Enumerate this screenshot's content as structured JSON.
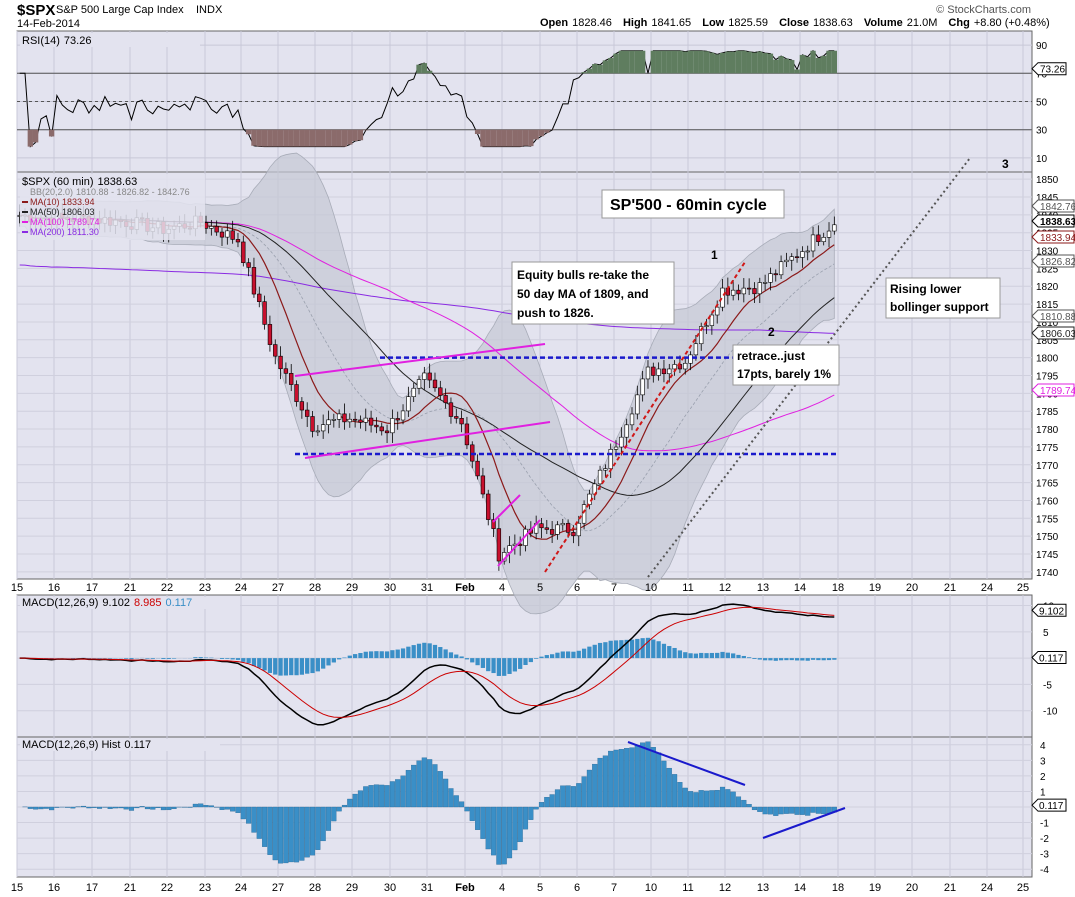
{
  "header": {
    "ticker": "$SPX",
    "name": "S&P 500 Large Cap Index",
    "exchange": "INDX",
    "date": "14-Feb-2014",
    "brand": "© StockCharts.com",
    "open_label": "Open",
    "open": "1828.46",
    "high_label": "High",
    "high": "1841.65",
    "low_label": "Low",
    "low": "1825.59",
    "close_label": "Close",
    "close": "1838.63",
    "volume_label": "Volume",
    "volume": "21.0M",
    "chg_label": "Chg",
    "chg": "+8.80 (+0.48%)"
  },
  "x_axis": {
    "labels": [
      "15",
      "16",
      "17",
      "21",
      "22",
      "23",
      "24",
      "27",
      "28",
      "29",
      "30",
      "31",
      "Feb",
      "4",
      "5",
      "6",
      "7",
      "10",
      "11",
      "12",
      "13",
      "14",
      "18",
      "19",
      "20",
      "21",
      "24",
      "25"
    ]
  },
  "rsi_panel": {
    "label": "RSI(14)",
    "value": "73.26",
    "ticks": [
      "90",
      "70",
      "50",
      "30",
      "10"
    ],
    "levels": [
      70,
      50,
      30
    ]
  },
  "price_panel": {
    "label": "$SPX (60 min)",
    "value": "1838.63",
    "bb": {
      "label": "BB(20,2.0)",
      "value": "1810.88 - 1826.82 - 1842.76"
    },
    "mas": [
      {
        "label": "MA(10)",
        "value": "1833.94",
        "color": "#8b1a1a"
      },
      {
        "label": "MA(50)",
        "value": "1806.03",
        "color": "#222222"
      },
      {
        "label": "MA(100)",
        "value": "1789.74",
        "color": "#e020e0"
      },
      {
        "label": "MA(200)",
        "value": "1811.30",
        "color": "#8a2be2"
      }
    ],
    "ticks": [
      "1850",
      "1845",
      "1840",
      "1835",
      "1830",
      "1825",
      "1820",
      "1815",
      "1810",
      "1805",
      "1800",
      "1795",
      "1790",
      "1785",
      "1780",
      "1775",
      "1770",
      "1765",
      "1760",
      "1755",
      "1750",
      "1745",
      "1740"
    ],
    "tags": [
      {
        "text": "1842.76",
        "color": "#555555"
      },
      {
        "text": "1838.63",
        "color": "#000000"
      },
      {
        "text": "1833.94",
        "color": "#8b1a1a"
      },
      {
        "text": "1826.82",
        "color": "#555555"
      },
      {
        "text": "1810.88",
        "color": "#555555"
      },
      {
        "text": "1806.03",
        "color": "#222222"
      },
      {
        "text": "1789.74",
        "color": "#e020e0"
      }
    ]
  },
  "annotations": {
    "title": "SP'500 - 60min cycle",
    "equity_note": [
      "Equity bulls re-take the",
      "50 day MA of 1809, and",
      "push to 1826."
    ],
    "retrace_note": [
      "retrace..just",
      "17pts, barely 1%"
    ],
    "support_note": [
      "Rising lower",
      "bollinger support"
    ],
    "wave_labels": [
      "1",
      "2",
      "3"
    ]
  },
  "macd_panel": {
    "label": "MACD(12,26,9)",
    "macd": "9.102",
    "signal": "8.985",
    "hist": "0.117",
    "ticks": [
      "10",
      "5",
      "0",
      "-5",
      "-10"
    ]
  },
  "hist_panel": {
    "label": "MACD(12,26,9) Hist",
    "value": "0.117",
    "ticks": [
      "4",
      "3",
      "2",
      "1",
      "0",
      "-1",
      "-2",
      "-3",
      "-4"
    ]
  },
  "chart_data": {
    "type": "candlestick",
    "title": "$SPX (60 min)",
    "x_sessions": [
      "15",
      "16",
      "17",
      "21",
      "22",
      "23",
      "24",
      "27",
      "28",
      "29",
      "30",
      "31",
      "Feb",
      "4",
      "5",
      "6",
      "7",
      "10",
      "11",
      "12",
      "13",
      "14"
    ],
    "price_session_close_approx": [
      1839,
      1839,
      1838,
      1836,
      1838,
      1833,
      1800,
      1781,
      1783,
      1780,
      1794,
      1782,
      1745,
      1752,
      1752,
      1773,
      1796,
      1799,
      1819,
      1820,
      1829,
      1838
    ],
    "price_ylim": [
      1738,
      1852
    ],
    "rsi_ylim": [
      0,
      100
    ],
    "macd_ylim": [
      -15,
      12
    ],
    "hist_ylim": [
      -4.5,
      4.5
    ],
    "levels": [
      1800,
      1773
    ]
  }
}
